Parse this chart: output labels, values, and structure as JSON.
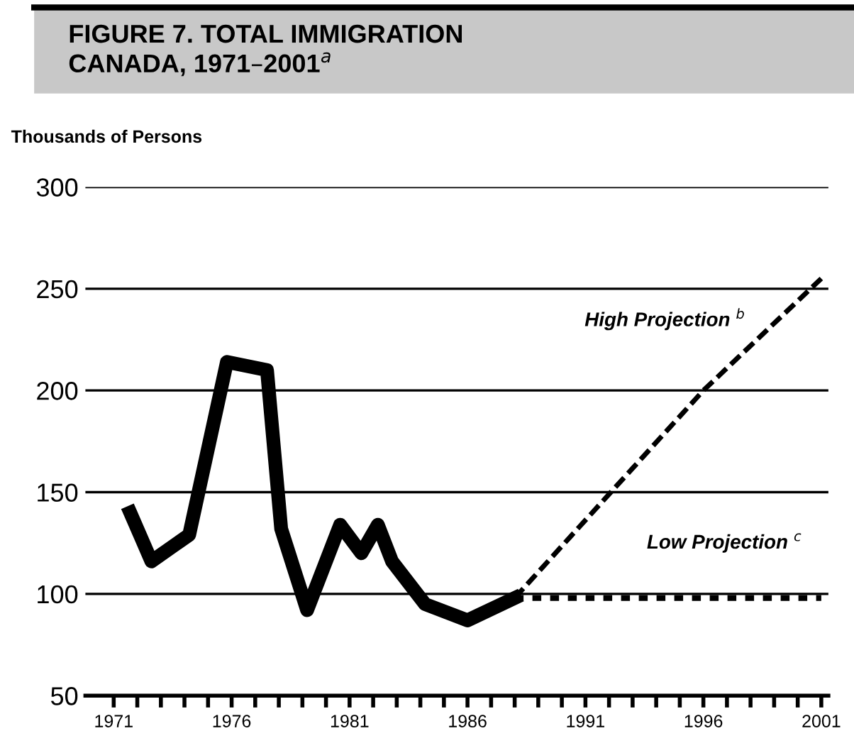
{
  "chart_data": {
    "type": "line",
    "title": "FIGURE 7. TOTAL IMMIGRATION\nCANADA, 1971–2001$^{a}$",
    "ylabel": "Thousands of Persons",
    "series": [
      {
        "color": "#000000",
        "line_style": "solid",
        "x": [
          1971.7,
          1972.6,
          1974.2,
          1975.8,
          1977.5,
          1978.1,
          1979.2,
          1980.6,
          1981.5,
          1982.2,
          1982.8,
          1984.2,
          1986.0,
          1988.0
        ],
        "values": [
          140,
          116,
          129,
          214,
          210,
          132,
          92,
          134,
          120,
          134,
          116,
          95,
          87,
          98
        ]
      },
      {
        "color": "#000000",
        "line_style": "dashed",
        "x": [
          1988.0,
          1996.0,
          2001.0
        ],
        "values": [
          98,
          200,
          255
        ]
      },
      {
        "color": "#000000",
        "line_style": "dotted",
        "x": [
          1988.0,
          2001.0
        ],
        "values": [
          98,
          98
        ]
      }
    ],
    "annotations": [
      "High Projection $^{b}$",
      "Low Projection $^{c}$"
    ],
    "xlim": [
      1969.8,
      2001.3
    ],
    "ylim": [
      50,
      300
    ],
    "yticks": [
      50,
      100,
      150,
      200,
      250,
      300
    ],
    "xticks": [
      1971,
      {
        "value": 1972,
        "label": null
      },
      {
        "value": 1973,
        "label": null
      },
      {
        "value": 1974,
        "label": null
      },
      {
        "value": 1975,
        "label": null
      },
      1976,
      {
        "value": 1977,
        "label": null
      },
      {
        "value": 1978,
        "label": null
      },
      {
        "value": 1979,
        "label": null
      },
      {
        "value": 1980,
        "label": null
      },
      1981,
      {
        "value": 1982,
        "label": null
      },
      {
        "value": 1983,
        "label": null
      },
      {
        "value": 1984,
        "label": null
      },
      {
        "value": 1985,
        "label": null
      },
      1986,
      {
        "value": 1987,
        "label": null
      },
      {
        "value": 1988,
        "label": null
      },
      {
        "value": 1989,
        "label": null
      },
      {
        "value": 1990,
        "label": null
      },
      1991,
      {
        "value": 1992,
        "label": null
      },
      {
        "value": 1993,
        "label": null
      },
      {
        "value": 1994,
        "label": null
      },
      {
        "value": 1995,
        "label": null
      },
      1996,
      {
        "value": 1997,
        "label": null
      },
      {
        "value": 1998,
        "label": null
      },
      {
        "value": 1999,
        "label": null
      },
      {
        "value": 2000,
        "label": null
      },
      2001
    ],
    "grid": "y",
    "legend": false
  }
}
